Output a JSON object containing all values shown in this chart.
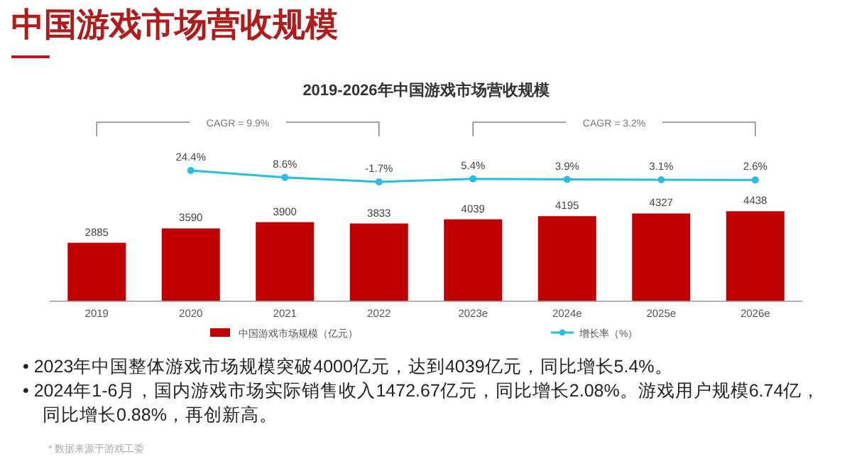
{
  "chart_data": [
    {
      "type": "line",
      "title": "中国游戏市场营收规模",
      "subtitle": "2019-2026年中国游戏市场营收规模",
      "categories": [
        null,
        null,
        null,
        null,
        null,
        null,
        null,
        null
      ],
      "series": [
        {
          "name": "增长率（%）",
          "color": "#29bde0",
          "values": [
            null,
            24.4,
            8.6,
            -1.7,
            5.4,
            3.9,
            3.1,
            2.6
          ],
          "value_labels": [
            null,
            "24.4%",
            "8.6%",
            "-1.7%",
            "5.4%",
            "3.9%",
            "3.1%",
            "2.6%"
          ]
        }
      ],
      "marker": "circle",
      "tick_labels": false,
      "legend": "bottom",
      "annotations": [
        "CAGR = 9.9%",
        "CAGR = 3.2%",
        "• 2023年中国整体游戏市场规模突破4000亿元，达到4039亿元，同比增长5.4%。",
        "• 2024年1-6月，国内游戏市场实际销售收入1472.67亿元，同比增长2.08%。游戏用户规模6.74亿，同比增长0.88%，再创新高。",
        "* 数据来源于游戏工委"
      ]
    },
    {
      "type": "bar",
      "categories": [
        "2019",
        "2020",
        "2021",
        "2022",
        "2023e",
        "2024e",
        "2025e",
        "2026e"
      ],
      "series": [
        {
          "name": "中国游戏市场规模（亿元）",
          "color": "#c00000",
          "values": [
            2885,
            3590,
            3900,
            3833,
            4039,
            4195,
            4327,
            4438
          ]
        }
      ],
      "data_labels": true,
      "legend": "bottom"
    }
  ]
}
